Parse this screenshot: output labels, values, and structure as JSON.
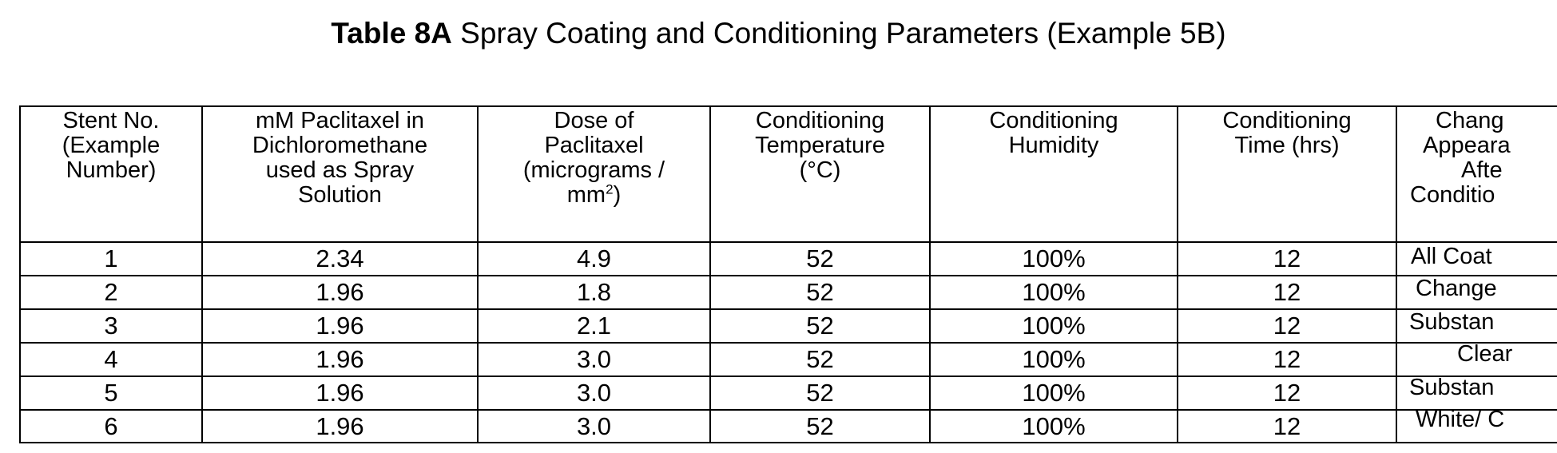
{
  "title": {
    "bold": "Table 8A",
    "rest": " Spray Coating and Conditioning Parameters (Example 5B)"
  },
  "headers": [
    [
      "Stent No.",
      "(Example",
      "Number)"
    ],
    [
      "mM Paclitaxel in",
      "Dichloromethane",
      "used as Spray",
      "Solution"
    ],
    [
      "Dose of",
      "Paclitaxel",
      "(micrograms /",
      "mm",
      "2",
      ")"
    ],
    [
      "Conditioning",
      "Temperature",
      "(°C)"
    ],
    [
      "Conditioning",
      "Humidity"
    ],
    [
      "Conditioning",
      "Time (hrs)"
    ],
    [
      "Chang",
      "Appeara",
      "Afte",
      "Conditio"
    ]
  ],
  "rows": [
    {
      "stent": "1",
      "mm": "2.34",
      "dose": "4.9",
      "temp": "52",
      "humidity": "100%",
      "time": "12"
    },
    {
      "stent": "2",
      "mm": "1.96",
      "dose": "1.8",
      "temp": "52",
      "humidity": "100%",
      "time": "12"
    },
    {
      "stent": "3",
      "mm": "1.96",
      "dose": "2.1",
      "temp": "52",
      "humidity": "100%",
      "time": "12"
    },
    {
      "stent": "4",
      "mm": "1.96",
      "dose": "3.0",
      "temp": "52",
      "humidity": "100%",
      "time": "12"
    },
    {
      "stent": "5",
      "mm": "1.96",
      "dose": "3.0",
      "temp": "52",
      "humidity": "100%",
      "time": "12"
    },
    {
      "stent": "6",
      "mm": "1.96",
      "dose": "3.0",
      "temp": "52",
      "humidity": "100%",
      "time": "12"
    }
  ],
  "remarks": [
    "All Coat",
    "Change",
    "Substan",
    "Clear",
    "Substan",
    "White/ C"
  ]
}
